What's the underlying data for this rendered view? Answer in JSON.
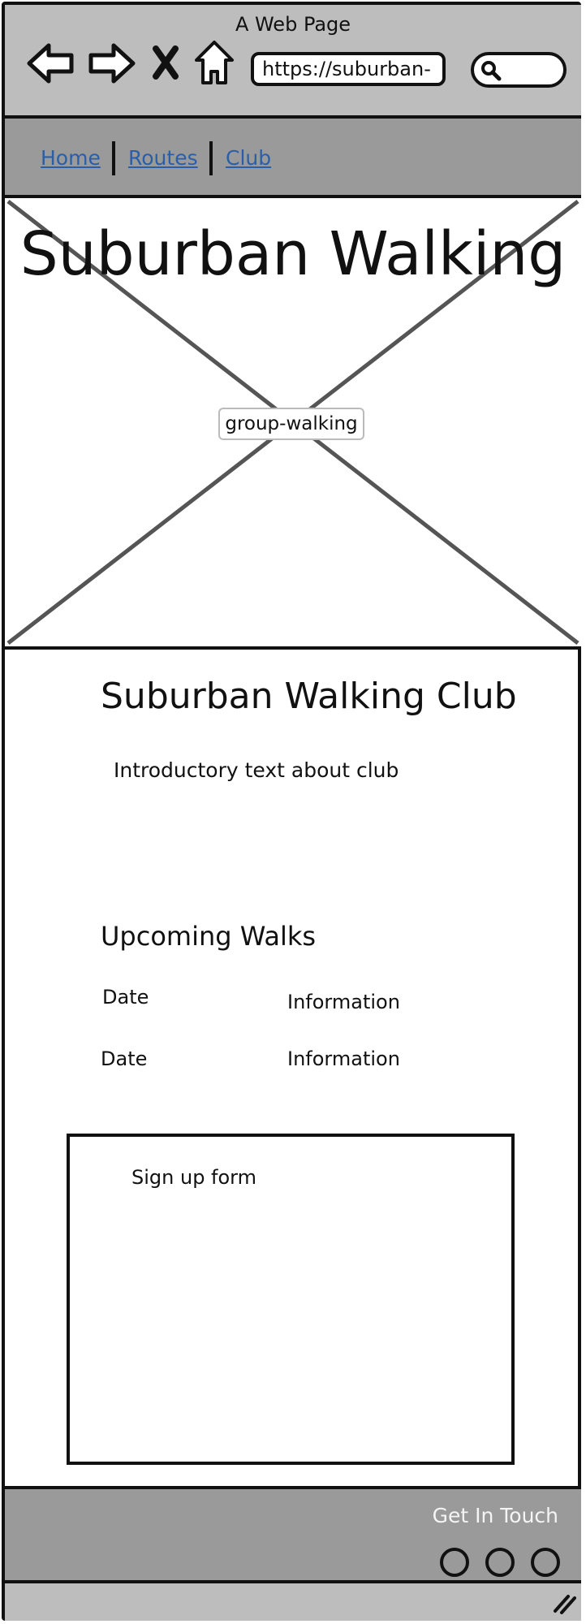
{
  "window": {
    "title": "A Web Page"
  },
  "browser": {
    "url": "https://suburban-",
    "icons": [
      "back-arrow-icon",
      "forward-arrow-icon",
      "close-x-icon",
      "home-icon",
      "search-icon"
    ]
  },
  "nav": {
    "links": [
      {
        "label": "Home"
      },
      {
        "label": "Routes"
      },
      {
        "label": "Club"
      }
    ]
  },
  "hero": {
    "title": "Suburban Walking",
    "image_label": "group-walking"
  },
  "main": {
    "club_title": "Suburban Walking Club",
    "intro": "Introductory text about club",
    "walks_title": "Upcoming Walks",
    "walks": [
      {
        "date": "Date",
        "info": "Information"
      },
      {
        "date": "Date",
        "info": "Information"
      }
    ],
    "signup_label": "Sign up form"
  },
  "footer": {
    "title": "Get In Touch",
    "social_count": 3
  },
  "colors": {
    "chrome": "#bdbdbd",
    "nav": "#9a9a9a",
    "link": "#2b5ea8"
  }
}
